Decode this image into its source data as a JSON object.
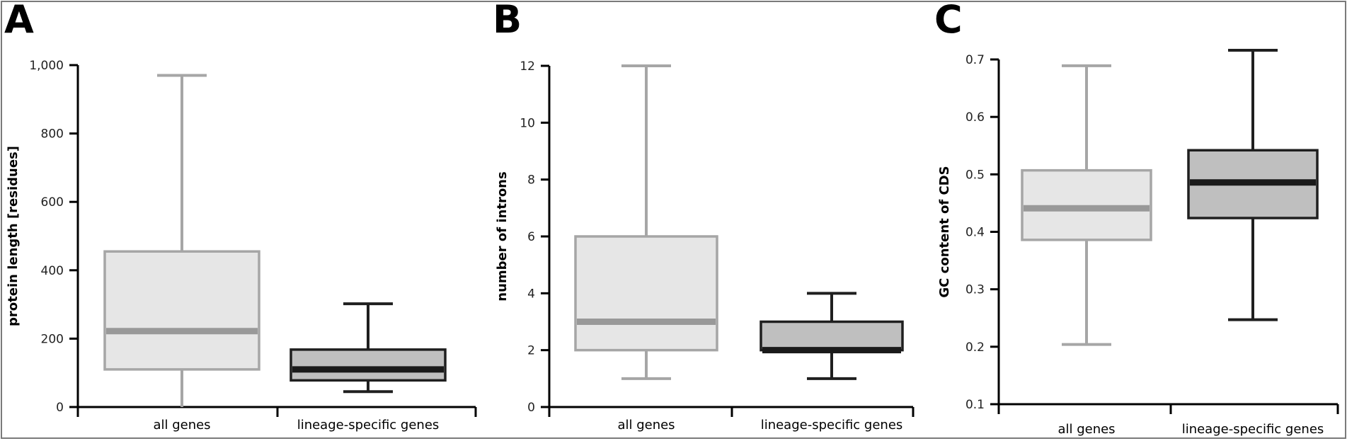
{
  "colors": {
    "all_genes_stroke": "#a6a6a6",
    "all_genes_fill": "#e6e6e6",
    "all_genes_median": "#999999",
    "lineage_stroke": "#1f1f1f",
    "lineage_fill": "#bfbfbf",
    "lineage_median": "#1a1a1a",
    "axis": "#000000"
  },
  "chart_data": [
    {
      "type": "box",
      "panel_label": "A",
      "ylabel": "protein length [residues]",
      "ylim": [
        0,
        1000
      ],
      "yticks": [
        0,
        200,
        400,
        600,
        800,
        1000
      ],
      "ytick_labels": [
        "0",
        "200",
        "400",
        "600",
        "800",
        "1,000"
      ],
      "categories": [
        "all genes",
        "lineage-specific genes"
      ],
      "boxes": [
        {
          "category": "all genes",
          "whisker_low": 0,
          "q1": 110,
          "median": 222,
          "q3": 455,
          "whisker_high": 970
        },
        {
          "category": "lineage-specific genes",
          "whisker_low": 45,
          "q1": 78,
          "median": 110,
          "q3": 168,
          "whisker_high": 302
        }
      ]
    },
    {
      "type": "box",
      "panel_label": "B",
      "ylabel": "number of introns",
      "ylim": [
        0,
        12
      ],
      "yticks": [
        0,
        2,
        4,
        6,
        8,
        10,
        12
      ],
      "ytick_labels": [
        "0",
        "2",
        "4",
        "6",
        "8",
        "10",
        "12"
      ],
      "categories": [
        "all genes",
        "lineage-specific genes"
      ],
      "boxes": [
        {
          "category": "all genes",
          "whisker_low": 1,
          "q1": 2,
          "median": 3,
          "q3": 6,
          "whisker_high": 12
        },
        {
          "category": "lineage-specific genes",
          "whisker_low": 1,
          "q1": 2,
          "median": 2,
          "q3": 3,
          "whisker_high": 4
        }
      ]
    },
    {
      "type": "box",
      "panel_label": "C",
      "ylabel": "GC content of CDS",
      "ylim": [
        0.1,
        0.7
      ],
      "yticks": [
        0.1,
        0.2,
        0.3,
        0.4,
        0.5,
        0.6,
        0.7
      ],
      "ytick_labels": [
        "0.1",
        "0.2",
        "0.3",
        "0.4",
        "0.5",
        "0.6",
        "0.7"
      ],
      "categories": [
        "all genes",
        "lineage-specific genes"
      ],
      "boxes": [
        {
          "category": "all genes",
          "whisker_low": 0.204,
          "q1": 0.386,
          "median": 0.441,
          "q3": 0.507,
          "whisker_high": 0.689
        },
        {
          "category": "lineage-specific genes",
          "whisker_low": 0.247,
          "q1": 0.424,
          "median": 0.486,
          "q3": 0.542,
          "whisker_high": 0.716
        }
      ]
    }
  ]
}
